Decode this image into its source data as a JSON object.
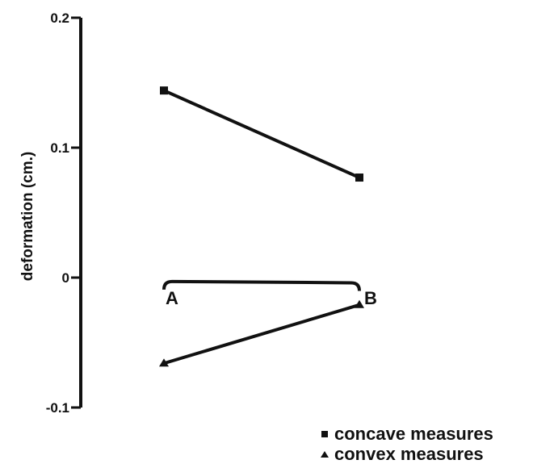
{
  "chart_data": {
    "type": "line",
    "title": "",
    "xlabel": "",
    "ylabel": "deformation (cm.)",
    "ylim": [
      -0.1,
      0.2
    ],
    "yticks": [
      {
        "value": 0.2,
        "label": "0.2"
      },
      {
        "value": 0.1,
        "label": "0.1"
      },
      {
        "value": 0,
        "label": "0"
      },
      {
        "value": -0.1,
        "label": "-0.1"
      }
    ],
    "categories": [
      "A",
      "B"
    ],
    "series": [
      {
        "name": "concave measures",
        "marker": "square",
        "values": [
          0.144,
          0.077
        ]
      },
      {
        "name": "convex measures",
        "marker": "triangle",
        "values": [
          -0.066,
          -0.021
        ]
      }
    ],
    "baseline": {
      "values": [
        -0.003,
        -0.004
      ]
    },
    "legend": "bottom-right",
    "grid": false,
    "colors": {
      "line": "#111111",
      "background": "#ffffff"
    }
  }
}
